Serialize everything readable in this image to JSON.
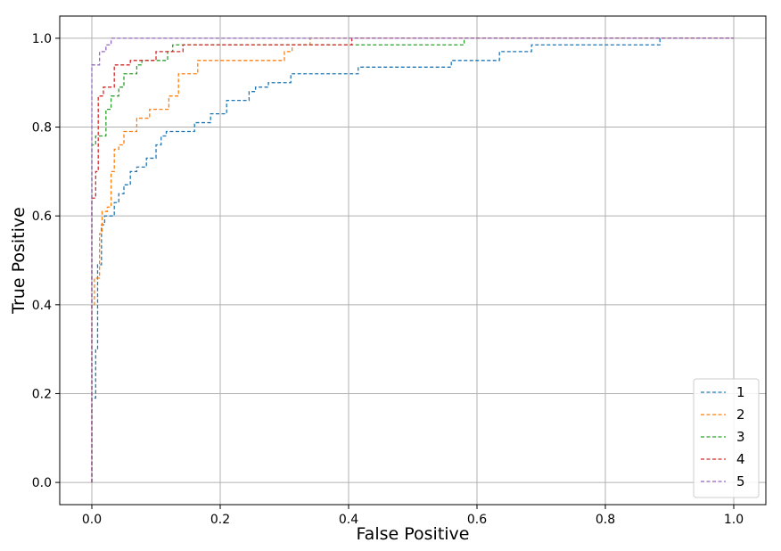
{
  "chart_data": {
    "type": "line",
    "title": "",
    "xlabel": "False Positive",
    "ylabel": "True Positive",
    "xlim": [
      -0.05,
      1.05
    ],
    "ylim": [
      -0.05,
      1.05
    ],
    "xticks": [
      0.0,
      0.2,
      0.4,
      0.6,
      0.8,
      1.0
    ],
    "xtick_labels": [
      "0.0",
      "0.2",
      "0.4",
      "0.6",
      "0.8",
      "1.0"
    ],
    "yticks": [
      0.0,
      0.2,
      0.4,
      0.6,
      0.8,
      1.0
    ],
    "ytick_labels": [
      "0.0",
      "0.2",
      "0.4",
      "0.6",
      "0.8",
      "1.0"
    ],
    "grid": true,
    "legend_position": "bottom-right",
    "line_style": "dashed",
    "series": [
      {
        "name": "1",
        "color": "#1f77b4",
        "points": [
          [
            0.0,
            0.0
          ],
          [
            0.0,
            0.19
          ],
          [
            0.006,
            0.19
          ],
          [
            0.006,
            0.3
          ],
          [
            0.009,
            0.3
          ],
          [
            0.009,
            0.49
          ],
          [
            0.015,
            0.49
          ],
          [
            0.015,
            0.58
          ],
          [
            0.02,
            0.58
          ],
          [
            0.02,
            0.6
          ],
          [
            0.035,
            0.6
          ],
          [
            0.035,
            0.63
          ],
          [
            0.042,
            0.63
          ],
          [
            0.042,
            0.65
          ],
          [
            0.05,
            0.65
          ],
          [
            0.05,
            0.67
          ],
          [
            0.06,
            0.67
          ],
          [
            0.06,
            0.7
          ],
          [
            0.07,
            0.7
          ],
          [
            0.07,
            0.71
          ],
          [
            0.085,
            0.71
          ],
          [
            0.085,
            0.73
          ],
          [
            0.1,
            0.73
          ],
          [
            0.1,
            0.76
          ],
          [
            0.108,
            0.76
          ],
          [
            0.108,
            0.78
          ],
          [
            0.116,
            0.78
          ],
          [
            0.116,
            0.79
          ],
          [
            0.16,
            0.79
          ],
          [
            0.16,
            0.81
          ],
          [
            0.185,
            0.81
          ],
          [
            0.185,
            0.83
          ],
          [
            0.21,
            0.83
          ],
          [
            0.21,
            0.86
          ],
          [
            0.245,
            0.86
          ],
          [
            0.245,
            0.88
          ],
          [
            0.255,
            0.88
          ],
          [
            0.255,
            0.89
          ],
          [
            0.275,
            0.89
          ],
          [
            0.275,
            0.9
          ],
          [
            0.31,
            0.9
          ],
          [
            0.31,
            0.92
          ],
          [
            0.415,
            0.92
          ],
          [
            0.415,
            0.935
          ],
          [
            0.56,
            0.935
          ],
          [
            0.56,
            0.95
          ],
          [
            0.635,
            0.95
          ],
          [
            0.635,
            0.97
          ],
          [
            0.685,
            0.97
          ],
          [
            0.685,
            0.985
          ],
          [
            0.885,
            0.985
          ],
          [
            0.885,
            1.0
          ],
          [
            1.0,
            1.0
          ]
        ]
      },
      {
        "name": "2",
        "color": "#ff7f0e",
        "points": [
          [
            0.0,
            0.0
          ],
          [
            0.0,
            0.4
          ],
          [
            0.004,
            0.4
          ],
          [
            0.004,
            0.46
          ],
          [
            0.012,
            0.46
          ],
          [
            0.012,
            0.56
          ],
          [
            0.016,
            0.56
          ],
          [
            0.016,
            0.61
          ],
          [
            0.024,
            0.61
          ],
          [
            0.024,
            0.62
          ],
          [
            0.03,
            0.62
          ],
          [
            0.03,
            0.7
          ],
          [
            0.035,
            0.7
          ],
          [
            0.035,
            0.75
          ],
          [
            0.042,
            0.75
          ],
          [
            0.042,
            0.76
          ],
          [
            0.05,
            0.76
          ],
          [
            0.05,
            0.79
          ],
          [
            0.07,
            0.79
          ],
          [
            0.07,
            0.82
          ],
          [
            0.09,
            0.82
          ],
          [
            0.09,
            0.84
          ],
          [
            0.12,
            0.84
          ],
          [
            0.12,
            0.87
          ],
          [
            0.135,
            0.87
          ],
          [
            0.135,
            0.92
          ],
          [
            0.165,
            0.92
          ],
          [
            0.165,
            0.95
          ],
          [
            0.3,
            0.95
          ],
          [
            0.3,
            0.97
          ],
          [
            0.312,
            0.97
          ],
          [
            0.312,
            0.985
          ],
          [
            0.34,
            0.985
          ],
          [
            0.34,
            1.0
          ],
          [
            1.0,
            1.0
          ]
        ]
      },
      {
        "name": "3",
        "color": "#2ca02c",
        "points": [
          [
            0.0,
            0.0
          ],
          [
            0.0,
            0.76
          ],
          [
            0.006,
            0.76
          ],
          [
            0.006,
            0.78
          ],
          [
            0.022,
            0.78
          ],
          [
            0.022,
            0.84
          ],
          [
            0.03,
            0.84
          ],
          [
            0.03,
            0.87
          ],
          [
            0.042,
            0.87
          ],
          [
            0.042,
            0.89
          ],
          [
            0.05,
            0.89
          ],
          [
            0.05,
            0.92
          ],
          [
            0.07,
            0.92
          ],
          [
            0.07,
            0.94
          ],
          [
            0.078,
            0.94
          ],
          [
            0.078,
            0.95
          ],
          [
            0.118,
            0.95
          ],
          [
            0.118,
            0.97
          ],
          [
            0.126,
            0.97
          ],
          [
            0.126,
            0.985
          ],
          [
            0.58,
            0.985
          ],
          [
            0.58,
            1.0
          ],
          [
            1.0,
            1.0
          ]
        ]
      },
      {
        "name": "4",
        "color": "#d62728",
        "points": [
          [
            0.0,
            0.0
          ],
          [
            0.0,
            0.64
          ],
          [
            0.006,
            0.64
          ],
          [
            0.006,
            0.7
          ],
          [
            0.01,
            0.7
          ],
          [
            0.01,
            0.87
          ],
          [
            0.018,
            0.87
          ],
          [
            0.018,
            0.89
          ],
          [
            0.035,
            0.89
          ],
          [
            0.035,
            0.94
          ],
          [
            0.06,
            0.94
          ],
          [
            0.06,
            0.95
          ],
          [
            0.1,
            0.95
          ],
          [
            0.1,
            0.97
          ],
          [
            0.142,
            0.97
          ],
          [
            0.142,
            0.985
          ],
          [
            0.405,
            0.985
          ],
          [
            0.405,
            1.0
          ],
          [
            1.0,
            1.0
          ]
        ]
      },
      {
        "name": "5",
        "color": "#9467bd",
        "points": [
          [
            0.0,
            0.0
          ],
          [
            0.0,
            0.94
          ],
          [
            0.012,
            0.94
          ],
          [
            0.012,
            0.97
          ],
          [
            0.022,
            0.97
          ],
          [
            0.022,
            0.985
          ],
          [
            0.03,
            0.985
          ],
          [
            0.03,
            1.0
          ],
          [
            1.0,
            1.0
          ]
        ]
      }
    ]
  }
}
